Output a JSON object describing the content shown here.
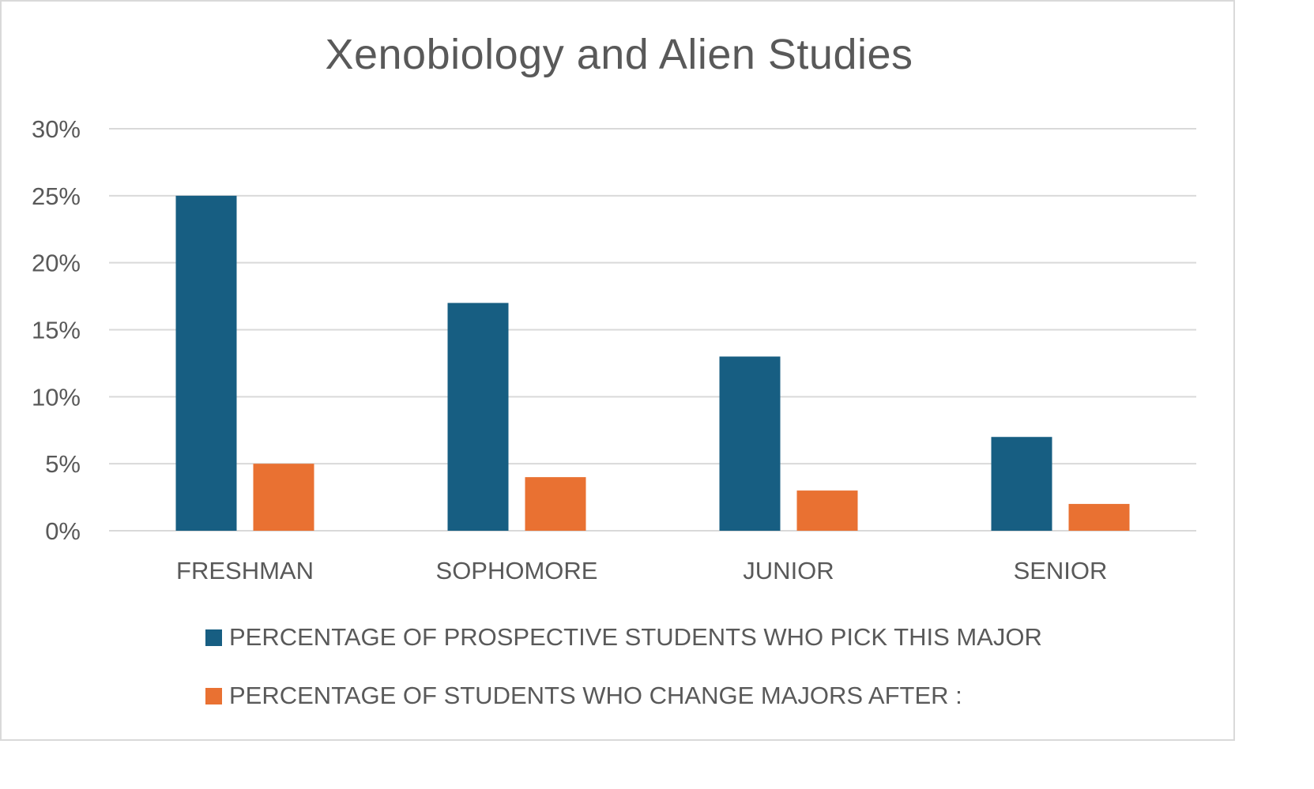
{
  "chart_data": {
    "type": "bar",
    "title": "Xenobiology and Alien Studies",
    "categories": [
      "FRESHMAN",
      "SOPHOMORE",
      "JUNIOR",
      "SENIOR"
    ],
    "series": [
      {
        "name": "PERCENTAGE OF PROSPECTIVE STUDENTS WHO PICK THIS MAJOR",
        "values": [
          25,
          17,
          13,
          7
        ],
        "color": "#175e82"
      },
      {
        "name": "PERCENTAGE OF STUDENTS WHO CHANGE MAJORS AFTER :",
        "values": [
          5,
          4,
          3,
          2
        ],
        "color": "#e97132"
      }
    ],
    "ylim": [
      0,
      30
    ],
    "yticks": [
      "0%",
      "5%",
      "10%",
      "15%",
      "20%",
      "25%",
      "30%"
    ],
    "xlabel": "",
    "ylabel": "",
    "grid": true,
    "legend_position": "bottom"
  }
}
